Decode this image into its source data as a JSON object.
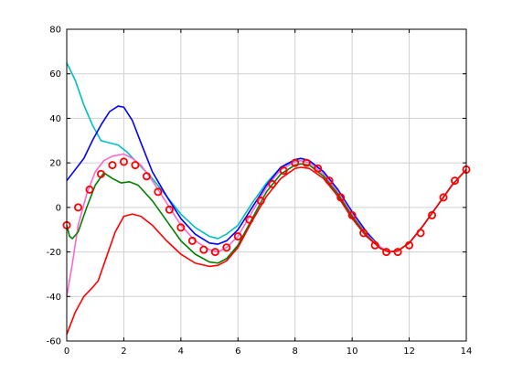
{
  "chart_data": {
    "type": "line",
    "title": "",
    "xlabel": "",
    "ylabel": "",
    "xlim": [
      0,
      14
    ],
    "ylim": [
      -60,
      80
    ],
    "xticks": [
      0,
      2,
      4,
      6,
      8,
      10,
      12,
      14
    ],
    "yticks": [
      -60,
      -40,
      -20,
      0,
      20,
      40,
      60,
      80
    ],
    "xtick_labels": [
      "0",
      "2",
      "4",
      "6",
      "8",
      "10",
      "12",
      "14"
    ],
    "ytick_labels": [
      "-60",
      "-40",
      "-20",
      "0",
      "20",
      "40",
      "60",
      "80"
    ],
    "grid": true,
    "series": [
      {
        "color": "#00bfbf",
        "style": "line",
        "points": [
          [
            0,
            65
          ],
          [
            0.3,
            57
          ],
          [
            0.6,
            46
          ],
          [
            0.9,
            37
          ],
          [
            1.2,
            30
          ],
          [
            1.5,
            29
          ],
          [
            1.8,
            28
          ],
          [
            2.1,
            25
          ],
          [
            2.4,
            21
          ],
          [
            2.7,
            17
          ],
          [
            3.0,
            13
          ],
          [
            3.5,
            5
          ],
          [
            4.0,
            -3
          ],
          [
            4.5,
            -9
          ],
          [
            5.0,
            -13
          ],
          [
            5.3,
            -14
          ],
          [
            5.6,
            -12
          ],
          [
            6.0,
            -8
          ],
          [
            6.5,
            2
          ],
          [
            7.0,
            11
          ],
          [
            7.5,
            18
          ],
          [
            8.0,
            21
          ],
          [
            8.2,
            22
          ],
          [
            8.5,
            21
          ],
          [
            9.0,
            16
          ],
          [
            9.5,
            8
          ],
          [
            10.0,
            -2
          ],
          [
            10.5,
            -11
          ],
          [
            11.0,
            -18
          ],
          [
            11.3,
            -20
          ],
          [
            11.6,
            -19.5
          ],
          [
            12.0,
            -16
          ],
          [
            12.5,
            -8
          ],
          [
            13.0,
            1
          ],
          [
            13.5,
            10
          ],
          [
            14.0,
            17
          ]
        ]
      },
      {
        "color": "#0000ff",
        "style": "line",
        "points": [
          [
            0,
            12
          ],
          [
            0.3,
            17
          ],
          [
            0.6,
            22
          ],
          [
            0.9,
            30
          ],
          [
            1.2,
            37
          ],
          [
            1.5,
            43
          ],
          [
            1.8,
            45.5
          ],
          [
            2.0,
            45
          ],
          [
            2.3,
            39
          ],
          [
            2.6,
            29
          ],
          [
            3.0,
            16
          ],
          [
            3.5,
            5
          ],
          [
            4.0,
            -5
          ],
          [
            4.5,
            -12
          ],
          [
            5.0,
            -16
          ],
          [
            5.3,
            -16.5
          ],
          [
            5.6,
            -15
          ],
          [
            6.0,
            -10
          ],
          [
            6.5,
            0
          ],
          [
            7.0,
            10
          ],
          [
            7.5,
            18
          ],
          [
            8.0,
            21.5
          ],
          [
            8.2,
            22
          ],
          [
            8.5,
            21
          ],
          [
            9.0,
            16
          ],
          [
            9.5,
            8
          ],
          [
            10.0,
            -2
          ],
          [
            10.5,
            -11
          ],
          [
            11.0,
            -18
          ],
          [
            11.3,
            -20
          ],
          [
            11.6,
            -19.5
          ],
          [
            12.0,
            -16
          ],
          [
            12.5,
            -8
          ],
          [
            13.0,
            1
          ],
          [
            13.5,
            10
          ],
          [
            14.0,
            17
          ]
        ]
      },
      {
        "color": "#ff66cc",
        "style": "line",
        "points": [
          [
            0,
            -40
          ],
          [
            0.2,
            -25
          ],
          [
            0.4,
            -8
          ],
          [
            0.7,
            6
          ],
          [
            1.0,
            16
          ],
          [
            1.3,
            21
          ],
          [
            1.6,
            23
          ],
          [
            2.0,
            24
          ],
          [
            2.3,
            22
          ],
          [
            2.6,
            19
          ],
          [
            3.0,
            12
          ],
          [
            3.5,
            2
          ],
          [
            4.0,
            -8
          ],
          [
            4.5,
            -15
          ],
          [
            5.0,
            -19
          ],
          [
            5.3,
            -20
          ],
          [
            5.6,
            -18
          ],
          [
            6.0,
            -13
          ],
          [
            6.5,
            -2
          ],
          [
            7.0,
            9
          ],
          [
            7.5,
            17
          ],
          [
            8.0,
            20.5
          ],
          [
            8.2,
            21
          ],
          [
            8.5,
            20
          ],
          [
            9.0,
            15
          ],
          [
            9.5,
            7
          ],
          [
            10.0,
            -3
          ],
          [
            10.5,
            -12
          ],
          [
            11.0,
            -18
          ],
          [
            11.3,
            -20
          ],
          [
            11.6,
            -19.5
          ],
          [
            12.0,
            -16
          ],
          [
            12.5,
            -8
          ],
          [
            13.0,
            1
          ],
          [
            13.5,
            10
          ],
          [
            14.0,
            17
          ]
        ]
      },
      {
        "color": "#008000",
        "style": "line",
        "points": [
          [
            0,
            -8
          ],
          [
            0.1,
            -13
          ],
          [
            0.2,
            -14
          ],
          [
            0.4,
            -11
          ],
          [
            0.7,
            0
          ],
          [
            1.0,
            10
          ],
          [
            1.3,
            15.5
          ],
          [
            1.6,
            13
          ],
          [
            1.9,
            11
          ],
          [
            2.2,
            11.5
          ],
          [
            2.5,
            10
          ],
          [
            3.0,
            3
          ],
          [
            3.5,
            -6
          ],
          [
            4.0,
            -15
          ],
          [
            4.5,
            -21
          ],
          [
            5.0,
            -24.5
          ],
          [
            5.3,
            -25
          ],
          [
            5.6,
            -23
          ],
          [
            6.0,
            -17
          ],
          [
            6.5,
            -5
          ],
          [
            7.0,
            7
          ],
          [
            7.5,
            15
          ],
          [
            8.0,
            19
          ],
          [
            8.2,
            19.5
          ],
          [
            8.5,
            19
          ],
          [
            9.0,
            14
          ],
          [
            9.5,
            6
          ],
          [
            10.0,
            -4
          ],
          [
            10.5,
            -12.5
          ],
          [
            11.0,
            -18.5
          ],
          [
            11.3,
            -20
          ],
          [
            11.6,
            -19.5
          ],
          [
            12.0,
            -16
          ],
          [
            12.5,
            -8
          ],
          [
            13.0,
            1
          ],
          [
            13.5,
            10
          ],
          [
            14.0,
            17
          ]
        ]
      },
      {
        "color": "#ff0000",
        "style": "line",
        "points": [
          [
            0,
            -57
          ],
          [
            0.3,
            -47
          ],
          [
            0.6,
            -40
          ],
          [
            0.9,
            -36
          ],
          [
            1.1,
            -33
          ],
          [
            1.4,
            -22
          ],
          [
            1.7,
            -11
          ],
          [
            2.0,
            -4
          ],
          [
            2.3,
            -3
          ],
          [
            2.6,
            -4
          ],
          [
            3.0,
            -8
          ],
          [
            3.5,
            -15
          ],
          [
            4.0,
            -21
          ],
          [
            4.5,
            -25
          ],
          [
            5.0,
            -26.5
          ],
          [
            5.3,
            -26
          ],
          [
            5.6,
            -24
          ],
          [
            6.0,
            -18
          ],
          [
            6.5,
            -6
          ],
          [
            7.0,
            5
          ],
          [
            7.5,
            13
          ],
          [
            8.0,
            17.5
          ],
          [
            8.2,
            18
          ],
          [
            8.5,
            17.5
          ],
          [
            9.0,
            13
          ],
          [
            9.5,
            5
          ],
          [
            10.0,
            -5
          ],
          [
            10.5,
            -13
          ],
          [
            11.0,
            -18.5
          ],
          [
            11.3,
            -20
          ],
          [
            11.6,
            -19.5
          ],
          [
            12.0,
            -16
          ],
          [
            12.5,
            -8
          ],
          [
            13.0,
            1
          ],
          [
            13.5,
            10
          ],
          [
            14.0,
            17
          ]
        ]
      },
      {
        "color": "#ff0000",
        "style": "markers",
        "marker": "circle",
        "points": [
          [
            0,
            -8
          ],
          [
            0.4,
            0
          ],
          [
            0.8,
            8
          ],
          [
            1.2,
            15
          ],
          [
            1.6,
            19
          ],
          [
            2.0,
            20.5
          ],
          [
            2.4,
            19
          ],
          [
            2.8,
            14
          ],
          [
            3.2,
            7
          ],
          [
            3.6,
            -1
          ],
          [
            4.0,
            -9
          ],
          [
            4.4,
            -15
          ],
          [
            4.8,
            -19
          ],
          [
            5.2,
            -20
          ],
          [
            5.6,
            -18
          ],
          [
            6.0,
            -13
          ],
          [
            6.4,
            -5.5
          ],
          [
            6.8,
            3
          ],
          [
            7.2,
            10.5
          ],
          [
            7.6,
            16.5
          ],
          [
            8.0,
            20
          ],
          [
            8.4,
            20
          ],
          [
            8.8,
            17.5
          ],
          [
            9.2,
            12
          ],
          [
            9.6,
            4.5
          ],
          [
            10.0,
            -3.5
          ],
          [
            10.4,
            -11.5
          ],
          [
            10.8,
            -17
          ],
          [
            11.2,
            -20
          ],
          [
            11.6,
            -20
          ],
          [
            12.0,
            -17
          ],
          [
            12.4,
            -11.5
          ],
          [
            12.8,
            -3.5
          ],
          [
            13.2,
            4.5
          ],
          [
            13.6,
            12
          ],
          [
            14.0,
            17
          ]
        ]
      }
    ]
  }
}
